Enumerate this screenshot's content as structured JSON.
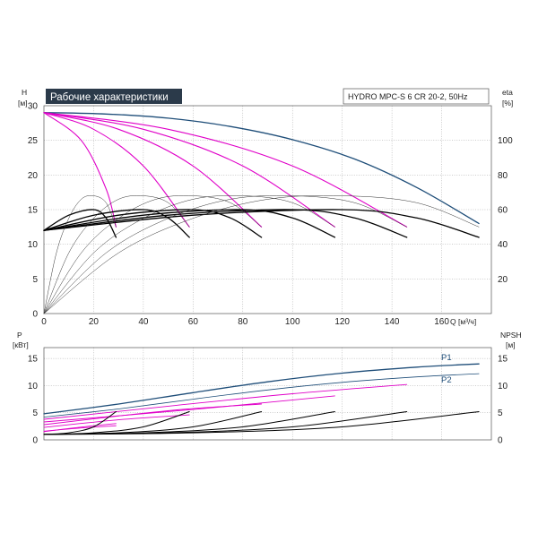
{
  "colors": {
    "head": "#000000",
    "pump_head": "#e000c8",
    "eta": "#333333",
    "max_head": "#1f4e79",
    "p1": "#1f4e79",
    "title_bg": "#2b3a4a",
    "title_fg": "#ffffff"
  },
  "chart_data": [
    {
      "type": "line",
      "title": "Рабочие характеристики",
      "subtitle": "HYDRO MPC-S 6 CR 20-2, 50Hz",
      "y_name": "H",
      "y_unit": "[м]",
      "y2_name": "eta",
      "y2_unit": "[%]",
      "x_name": "Q",
      "x_unit": "[м³/ч]",
      "xlim": [
        0,
        180
      ],
      "ylim": [
        0,
        30
      ],
      "y2lim": [
        0,
        120
      ],
      "x_ticks": [
        0,
        20,
        40,
        60,
        80,
        100,
        120,
        140,
        160
      ],
      "y_ticks": [
        0,
        5,
        10,
        15,
        20,
        25,
        30
      ],
      "y2_ticks": [
        20,
        40,
        60,
        80,
        100
      ],
      "grid": true,
      "series": [
        {
          "group": "max_head",
          "x": [
            0,
            25,
            50,
            75,
            100,
            125,
            150,
            175
          ],
          "y": [
            29,
            28.8,
            28.2,
            27,
            25.1,
            22.3,
            18.2,
            13
          ]
        },
        {
          "group": "pump_head",
          "x": [
            0,
            15,
            25,
            29
          ],
          "y": [
            29,
            25,
            18,
            12.5
          ]
        },
        {
          "group": "pump_head",
          "x": [
            0,
            20,
            40,
            58.5
          ],
          "y": [
            29,
            26.6,
            21.3,
            12.5
          ]
        },
        {
          "group": "pump_head",
          "x": [
            0,
            30,
            60,
            87.5
          ],
          "y": [
            29,
            26.6,
            21.3,
            12.5
          ]
        },
        {
          "group": "pump_head",
          "x": [
            0,
            40,
            80,
            117
          ],
          "y": [
            29,
            26.6,
            21.3,
            12.5
          ]
        },
        {
          "group": "pump_head",
          "x": [
            0,
            50,
            100,
            146
          ],
          "y": [
            29,
            26.6,
            21.3,
            12.5
          ]
        },
        {
          "group": "head",
          "x": [
            0,
            10,
            20,
            25,
            29
          ],
          "y": [
            12,
            14.2,
            15,
            13.8,
            11
          ]
        },
        {
          "group": "head",
          "x": [
            0,
            20,
            40,
            50,
            58.5
          ],
          "y": [
            12,
            14.2,
            15,
            13.8,
            11
          ]
        },
        {
          "group": "head",
          "x": [
            0,
            30,
            60,
            75,
            87.5
          ],
          "y": [
            12,
            14.2,
            15,
            13.8,
            11
          ]
        },
        {
          "group": "head",
          "x": [
            0,
            40,
            80,
            100,
            117
          ],
          "y": [
            12,
            14.2,
            15,
            13.8,
            11
          ]
        },
        {
          "group": "head",
          "x": [
            0,
            50,
            100,
            125,
            146
          ],
          "y": [
            12,
            14.2,
            15,
            13.8,
            11
          ]
        },
        {
          "group": "head",
          "x": [
            0,
            60,
            120,
            150,
            175
          ],
          "y": [
            12,
            14.2,
            15,
            13.8,
            11
          ]
        },
        {
          "group": "eta",
          "x": [
            0,
            5,
            10,
            15,
            20,
            25,
            29
          ],
          "y2": [
            0,
            35,
            55,
            66,
            68,
            64,
            50
          ]
        },
        {
          "group": "eta",
          "x": [
            0,
            10,
            20,
            30,
            40,
            50,
            58.5
          ],
          "y2": [
            0,
            35,
            55,
            66,
            68,
            64,
            50
          ]
        },
        {
          "group": "eta",
          "x": [
            0,
            15,
            30,
            45,
            60,
            75,
            87.5
          ],
          "y2": [
            0,
            35,
            55,
            66,
            68,
            64,
            50
          ]
        },
        {
          "group": "eta",
          "x": [
            0,
            20,
            40,
            60,
            80,
            100,
            117
          ],
          "y2": [
            0,
            35,
            55,
            66,
            68,
            64,
            50
          ]
        },
        {
          "group": "eta",
          "x": [
            0,
            25,
            50,
            75,
            100,
            125,
            146
          ],
          "y2": [
            0,
            35,
            55,
            66,
            68,
            64,
            50
          ]
        },
        {
          "group": "eta",
          "x": [
            0,
            30,
            60,
            90,
            120,
            150,
            175
          ],
          "y2": [
            0,
            35,
            55,
            66,
            68,
            64,
            50
          ]
        }
      ]
    },
    {
      "type": "line",
      "y_name": "P",
      "y_unit": "[кВт]",
      "y2_name": "NPSH",
      "y2_unit": "[м]",
      "xlim": [
        0,
        180
      ],
      "ylim": [
        0,
        17
      ],
      "y2lim": [
        0,
        17
      ],
      "y_ticks": [
        0,
        5,
        10,
        15
      ],
      "y2_ticks": [
        0,
        5,
        10,
        15
      ],
      "grid": true,
      "series": [
        {
          "name": "P1",
          "group": "p1",
          "x": [
            0,
            30,
            60,
            90,
            120,
            150,
            175
          ],
          "y": [
            4.8,
            6.6,
            8.7,
            10.7,
            12.3,
            13.4,
            14
          ]
        },
        {
          "name": "P2",
          "group": "p2",
          "x": [
            0,
            30,
            60,
            90,
            120,
            150,
            175
          ],
          "y": [
            4.2,
            5.7,
            7.5,
            9.2,
            10.6,
            11.6,
            12.2
          ]
        },
        {
          "group": "pump_power",
          "x": [
            0,
            60,
            117
          ],
          "y": [
            3.3,
            5.6,
            8.1
          ]
        },
        {
          "group": "pump_power",
          "x": [
            0,
            50,
            100,
            146
          ],
          "y": [
            3.8,
            6.2,
            8.5,
            10.2
          ]
        },
        {
          "group": "pump_power",
          "x": [
            0,
            30,
            58,
            87.5
          ],
          "y": [
            2.8,
            4.4,
            5.7,
            6.6
          ]
        },
        {
          "group": "pump_power",
          "x": [
            0,
            30,
            58.5
          ],
          "y": [
            2.3,
            3.7,
            4.6
          ]
        },
        {
          "group": "pump_power",
          "x": [
            0,
            15,
            29
          ],
          "y": [
            1.6,
            2.2,
            2.6
          ]
        },
        {
          "group": "pump_power",
          "x": [
            0,
            10,
            20,
            29
          ],
          "y": [
            1.5,
            2.1,
            2.6,
            3.0
          ]
        },
        {
          "group": "npsh",
          "x": [
            0,
            10,
            20,
            29
          ],
          "y2": [
            1,
            1.3,
            2.4,
            5.2
          ]
        },
        {
          "group": "npsh",
          "x": [
            0,
            20,
            40,
            58.5
          ],
          "y2": [
            1,
            1.3,
            2.4,
            5.2
          ]
        },
        {
          "group": "npsh",
          "x": [
            0,
            30,
            60,
            87.5
          ],
          "y2": [
            1,
            1.3,
            2.4,
            5.2
          ]
        },
        {
          "group": "npsh",
          "x": [
            0,
            40,
            80,
            117
          ],
          "y2": [
            1,
            1.3,
            2.4,
            5.2
          ]
        },
        {
          "group": "npsh",
          "x": [
            0,
            50,
            100,
            146
          ],
          "y2": [
            1,
            1.3,
            2.4,
            5.2
          ]
        },
        {
          "group": "npsh",
          "x": [
            0,
            60,
            120,
            175
          ],
          "y2": [
            1,
            1.3,
            2.4,
            5.2
          ]
        }
      ]
    }
  ]
}
